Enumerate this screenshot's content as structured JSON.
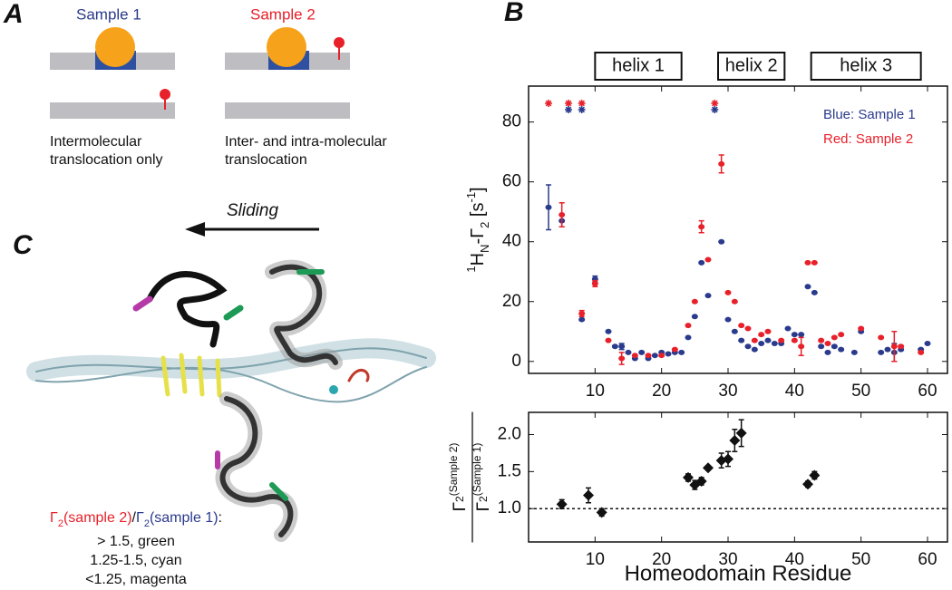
{
  "panel_a": {
    "label": "A",
    "sample1": "Sample 1",
    "sample2": "Sample 2",
    "caption1": [
      "Intermolecular",
      "translocation only"
    ],
    "caption2": [
      "Inter- and intra-molecular",
      "translocation"
    ]
  },
  "panel_b": {
    "label": "B"
  },
  "panel_c": {
    "label": "C",
    "arrow_label": "Sliding",
    "legend_title": [
      "Γ",
      "2",
      "(sample 2)",
      "/",
      "Γ",
      "2",
      "(sample 1)",
      ":"
    ],
    "legend_lines": [
      "> 1.5, green",
      "1.25-1.5, cyan",
      "<1.25, magenta"
    ]
  },
  "chart_data": [
    {
      "type": "scatter",
      "ylabel": [
        "1",
        "H",
        "N",
        "-Γ",
        "2",
        " [s",
        "-1",
        "]"
      ],
      "xlim": [
        0,
        63
      ],
      "ylim": [
        -4,
        92
      ],
      "xticks": [
        10,
        20,
        30,
        40,
        50,
        60
      ],
      "yticks": [
        0,
        20,
        40,
        60,
        80
      ],
      "helices": [
        {
          "label": "helix 1",
          "start": 10,
          "end": 23
        },
        {
          "label": "helix 2",
          "start": 28.5,
          "end": 38.5
        },
        {
          "label": "helix 3",
          "start": 42.5,
          "end": 59
        }
      ],
      "offscale": [
        {
          "color": "#e8202a",
          "x": [
            3,
            6,
            8,
            28
          ]
        },
        {
          "color": "#2a3a8c",
          "x": [
            6,
            8,
            28
          ]
        }
      ],
      "series": [
        {
          "name": "Blue: Sample 1",
          "color": "#2a3a8c",
          "x": [
            3,
            5,
            8,
            10,
            12,
            13,
            14,
            15,
            16,
            17,
            18,
            19,
            20,
            21,
            22,
            23,
            24,
            25,
            26,
            27,
            29,
            30,
            31,
            32,
            33,
            34,
            35,
            36,
            37,
            38,
            39,
            40,
            41,
            42,
            43,
            44,
            45,
            46,
            47,
            49,
            50,
            53,
            54,
            55,
            56,
            59,
            60
          ],
          "values": [
            51.5,
            47,
            14,
            27.5,
            10,
            5,
            5,
            3,
            1,
            3,
            1,
            2,
            3,
            2.5,
            3,
            3,
            8,
            15,
            33,
            22,
            40,
            14,
            10,
            7,
            5,
            4,
            6,
            7,
            6,
            6,
            11,
            9,
            9,
            25,
            23,
            5,
            3,
            5,
            4,
            3,
            10,
            3,
            4,
            3,
            4,
            4,
            6
          ],
          "errors": [
            7.5,
            2,
            null,
            1,
            null,
            null,
            1,
            null,
            null,
            null,
            null,
            null,
            null,
            null,
            null,
            null,
            null,
            null,
            null,
            null,
            null,
            null,
            null,
            null,
            null,
            null,
            null,
            null,
            null,
            null,
            null,
            null,
            null,
            null,
            null,
            null,
            null,
            null,
            null,
            null,
            null,
            null,
            null,
            3,
            null,
            null,
            null
          ]
        },
        {
          "name": "Red: Sample 2",
          "color": "#e8202a",
          "x": [
            5,
            8,
            10,
            12,
            14,
            16,
            18,
            20,
            22,
            24,
            25,
            26,
            27,
            29,
            30,
            31,
            32,
            33,
            34,
            35,
            36,
            38,
            40,
            41,
            42,
            43,
            44,
            45,
            46,
            47,
            50,
            53,
            55,
            56,
            59
          ],
          "values": [
            49,
            16,
            26,
            7,
            1,
            2,
            2,
            2,
            4,
            12,
            20,
            45,
            34,
            66,
            23,
            20,
            12,
            11,
            7,
            9,
            10,
            7,
            7,
            5,
            33,
            33,
            7,
            6,
            8,
            9,
            11,
            8,
            5,
            5,
            3
          ],
          "errors": [
            4,
            1,
            1,
            null,
            2,
            null,
            null,
            null,
            null,
            null,
            null,
            2,
            null,
            3,
            null,
            null,
            null,
            null,
            null,
            null,
            null,
            null,
            null,
            3,
            null,
            null,
            null,
            null,
            null,
            null,
            null,
            null,
            5,
            null,
            null
          ]
        }
      ]
    },
    {
      "type": "scatter",
      "xlabel": "Homeodomain Residue",
      "ylabel_num": [
        "Γ",
        "2",
        "(Sample 2)"
      ],
      "ylabel_den": [
        "Γ",
        "2",
        "(Sample 1)"
      ],
      "xlim": [
        0,
        63
      ],
      "ylim": [
        0.55,
        2.3
      ],
      "xticks": [
        10,
        20,
        30,
        40,
        50,
        60
      ],
      "yticks": [
        {
          "value": 1,
          "label": "1.0"
        },
        1.5,
        {
          "value": 2,
          "label": "2.0"
        }
      ],
      "reference_line": 1,
      "series": [
        {
          "color": "#111111",
          "x": [
            5,
            9,
            11,
            24,
            25,
            26,
            27,
            29,
            30,
            31,
            32,
            42,
            43
          ],
          "values": [
            1.06,
            1.18,
            0.95,
            1.42,
            1.32,
            1.37,
            1.55,
            1.65,
            1.67,
            1.92,
            2.02,
            1.33,
            1.45
          ],
          "errors": [
            0.06,
            0.1,
            0.05,
            0.05,
            0.06,
            0.05,
            0.03,
            0.1,
            0.1,
            0.15,
            0.18,
            0.04,
            0.05
          ]
        }
      ]
    }
  ]
}
